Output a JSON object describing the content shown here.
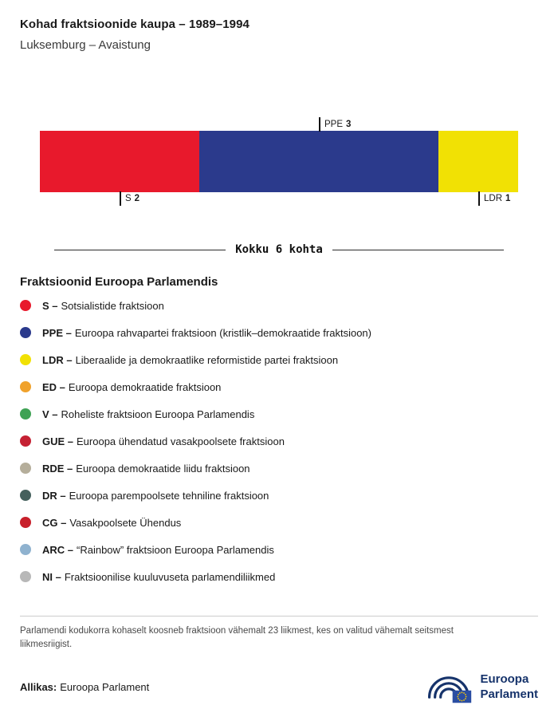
{
  "header": {
    "title": "Kohad fraktsioonide kaupa – 1989–1994",
    "subtitle": "Luksemburg – Avaistung"
  },
  "chart_data": {
    "type": "bar",
    "variant": "horizontal-stacked",
    "title": "Kohad fraktsioonide kaupa – 1989–1994",
    "subtitle": "Luksemburg – Avaistung",
    "total_seats": 6,
    "total_label": "Kokku 6 kohta",
    "segments": [
      {
        "code": "S",
        "seats": 2,
        "color": "#e8192c",
        "label_position": "below"
      },
      {
        "code": "PPE",
        "seats": 3,
        "color": "#2b3a8c",
        "label_position": "above"
      },
      {
        "code": "LDR",
        "seats": 1,
        "color": "#f1e104",
        "label_position": "below"
      }
    ]
  },
  "legend": {
    "heading": "Fraktsioonid Euroopa Parlamendis",
    "items": [
      {
        "code": "S –",
        "name": "Sotsialistide fraktsioon",
        "color": "#e8192c"
      },
      {
        "code": "PPE –",
        "name": "Euroopa rahvapartei fraktsioon (kristlik–demokraatide fraktsioon)",
        "color": "#2b3a8c"
      },
      {
        "code": "LDR –",
        "name": "Liberaalide ja demokraatlike reformistide partei fraktsioon",
        "color": "#f1e104"
      },
      {
        "code": "ED –",
        "name": "Euroopa demokraatide fraktsioon",
        "color": "#f0a22c"
      },
      {
        "code": "V –",
        "name": "Roheliste fraktsioon Euroopa Parlamendis",
        "color": "#3fa254"
      },
      {
        "code": "GUE –",
        "name": "Euroopa ühendatud vasakpoolsete fraktsioon",
        "color": "#c52133"
      },
      {
        "code": "RDE –",
        "name": "Euroopa demokraatide liidu fraktsioon",
        "color": "#b5ae9b"
      },
      {
        "code": "DR –",
        "name": "Euroopa parempoolsete tehniline fraktsioon",
        "color": "#45605d"
      },
      {
        "code": "CG –",
        "name": "Vasakpoolsete Ühendus",
        "color": "#c8202b"
      },
      {
        "code": "ARC –",
        "name": "“Rainbow” fraktsioon Euroopa Parlamendis",
        "color": "#8fb2cf"
      },
      {
        "code": "NI –",
        "name": "Fraktsioonilise kuuluvuseta parlamendiliikmed",
        "color": "#b8b8b8"
      }
    ]
  },
  "footnote": "Parlamendi kodukorra kohaselt koosneb fraktsioon vähemalt 23 liikmest, kes on valitud vähemalt seitsmest liikmesriigist.",
  "source": {
    "label": "Allikas:",
    "value": "Euroopa Parlament"
  },
  "logo": {
    "line1": "Euroopa",
    "line2": "Parlament"
  }
}
